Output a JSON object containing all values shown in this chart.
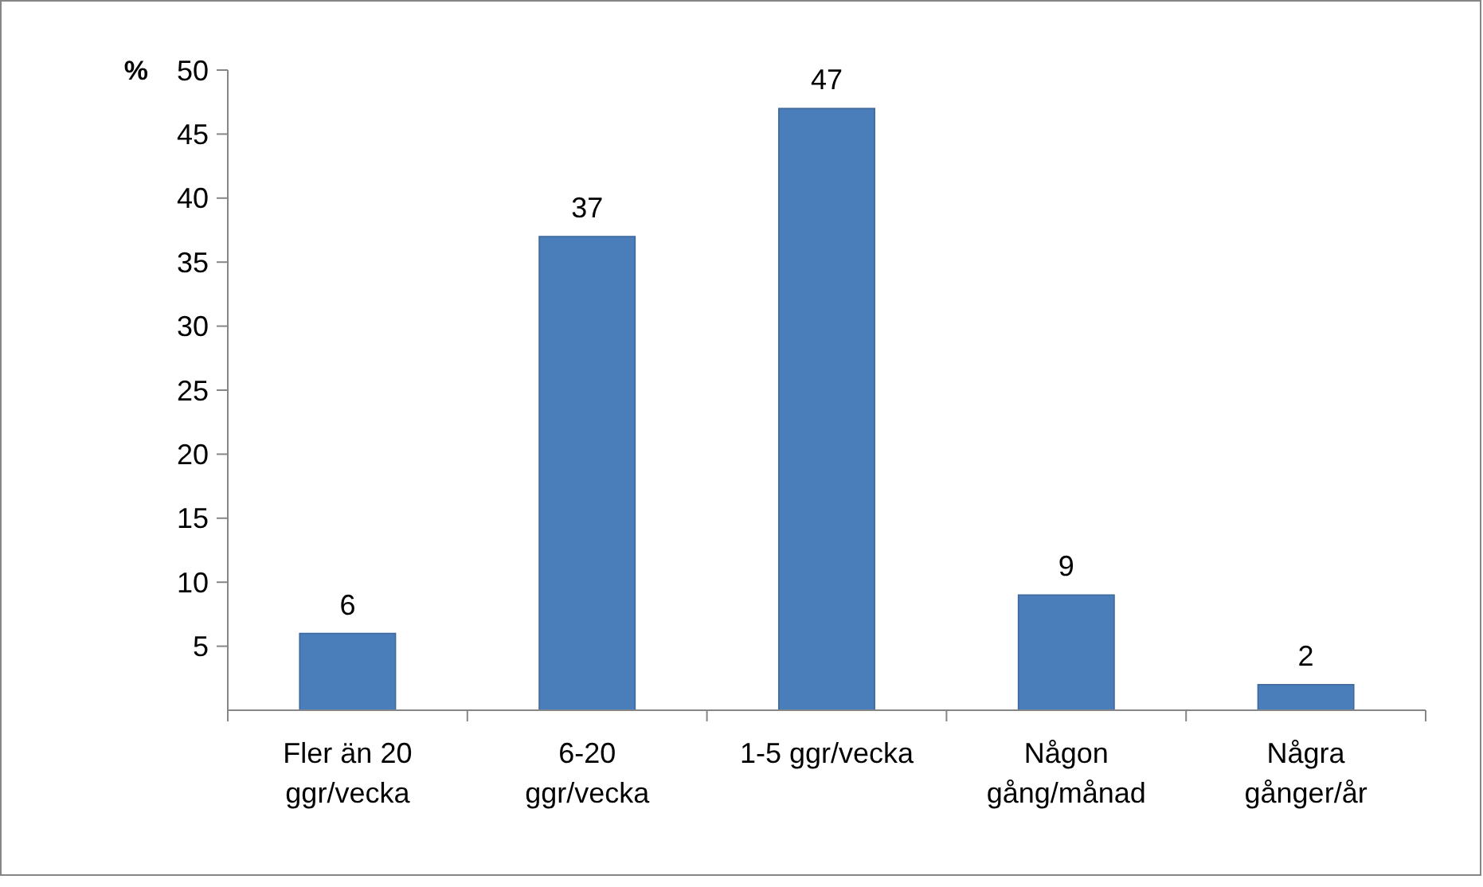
{
  "chart_data": {
    "type": "bar",
    "ylabel": "%",
    "categories": [
      "Fler än 20 ggr/vecka",
      "6-20 ggr/vecka",
      "1-5 ggr/vecka",
      "Någon gång/månad",
      "Några gånger/år"
    ],
    "values": [
      6,
      37,
      47,
      9,
      2
    ],
    "color": "#4a7ebb",
    "ylim": [
      0,
      50
    ],
    "yticks": [
      5,
      10,
      15,
      20,
      25,
      30,
      35,
      40,
      45,
      50
    ],
    "grid": false,
    "data_labels": true
  }
}
